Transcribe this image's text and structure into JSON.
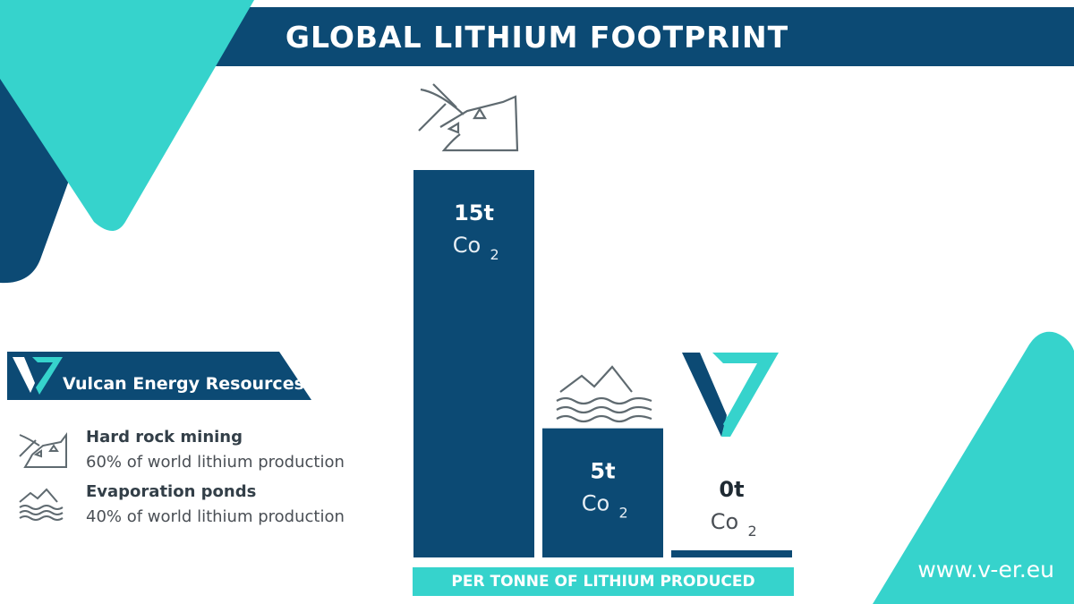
{
  "title": "GLOBAL LITHIUM FOOTPRINT",
  "colors": {
    "navy": "#0c4a74",
    "teal": "#36d3cc",
    "icon_gray": "#5f6a70",
    "text_dark": "#333f48"
  },
  "brand": {
    "name": "Vulcan Energy Resources",
    "logo_icon": "vulcan-v-logo"
  },
  "legend": [
    {
      "icon": "pickaxe-mountain-icon",
      "title": "Hard rock mining",
      "desc": "60% of world lithium production"
    },
    {
      "icon": "waves-mountain-icon",
      "title": "Evaporation ponds",
      "desc": "40% of world lithium production"
    }
  ],
  "website": "www.v-er.eu",
  "chart_data": {
    "type": "bar",
    "categories": [
      "Hard rock mining",
      "Evaporation ponds",
      "Vulcan Energy Resources"
    ],
    "values": [
      15,
      5,
      0
    ],
    "value_labels": [
      "15t",
      "5t",
      "0t"
    ],
    "unit_label": "Co",
    "unit_subscript": "2",
    "category_icons": [
      "pickaxe-mountain-icon",
      "waves-mountain-icon",
      "vulcan-v-logo"
    ],
    "xlabel": "PER TONNE OF LITHIUM PRODUCED",
    "ylabel": "",
    "ylim": [
      0,
      15
    ],
    "grid": false,
    "legend": "left"
  }
}
